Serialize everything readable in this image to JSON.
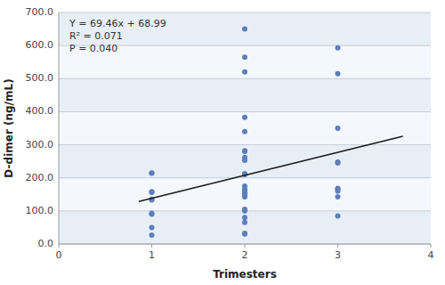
{
  "chart_data": {
    "type": "scatter",
    "xlabel": "Trimesters",
    "ylabel": "D-dimer (ng/mL)",
    "xlim": [
      0,
      4
    ],
    "ylim": [
      0,
      700
    ],
    "xticks": [
      0,
      1,
      2,
      3,
      4
    ],
    "yticks": [
      {
        "value": 0,
        "label": "0.0"
      },
      {
        "value": 100,
        "label": "100.0"
      },
      {
        "value": 200,
        "label": "200.0"
      },
      {
        "value": 300,
        "label": "300.0"
      },
      {
        "value": 400,
        "label": "400.0"
      },
      {
        "value": 500,
        "label": "500.0"
      },
      {
        "value": 600,
        "label": "600.0"
      },
      {
        "value": 700,
        "label": "700.0"
      }
    ],
    "grid": true,
    "annotations": [
      "Y = 69.46x + 68.99",
      "R² = 0.071",
      "P = 0.040"
    ],
    "series": [
      {
        "type": "scatter",
        "color": "#5b7fba",
        "marker": "circle",
        "x": [
          1,
          1,
          1,
          1,
          1,
          1,
          1,
          1,
          1,
          1,
          2,
          2,
          2,
          2,
          2,
          2,
          2,
          2,
          2,
          2,
          2,
          2,
          2,
          2,
          2,
          2,
          2,
          2,
          2,
          2,
          2,
          2,
          2,
          2,
          2,
          3,
          3,
          3,
          3,
          3,
          3,
          3,
          3,
          3,
          3
        ],
        "values": [
          215,
          214,
          158,
          156,
          135,
          133,
          93,
          90,
          50,
          27,
          650,
          565,
          520,
          383,
          340,
          282,
          280,
          262,
          253,
          213,
          210,
          175,
          165,
          163,
          162,
          155,
          150,
          148,
          143,
          105,
          100,
          80,
          65,
          32,
          30,
          593,
          515,
          350,
          248,
          245,
          168,
          165,
          143,
          85,
          160
        ]
      },
      {
        "type": "line",
        "color": "#1a1a1a",
        "line_style": "solid",
        "x": [
          0.86,
          3.7
        ],
        "values": [
          128.7256,
          325.992
        ]
      }
    ]
  }
}
